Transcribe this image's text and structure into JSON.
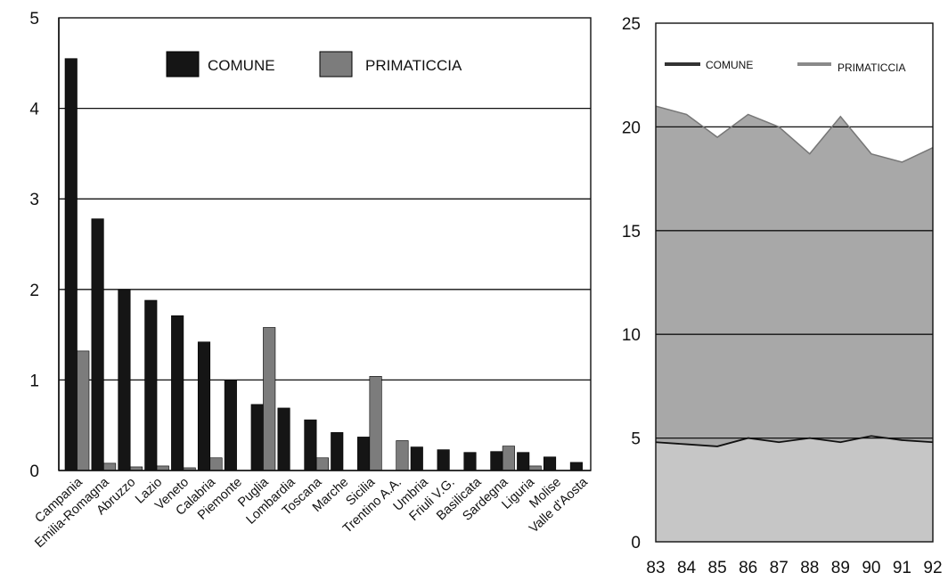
{
  "colors": {
    "comune_bar": "#151515",
    "primaticcia_bar": "#7c7c7c",
    "area_upper": "#a8a8a8",
    "area_lower": "#c6c6c6",
    "grid": "#111111",
    "frame": "#111111"
  },
  "chart_data": [
    {
      "type": "bar",
      "title": "",
      "xlabel": "",
      "ylabel": "",
      "ylim": [
        0,
        5
      ],
      "yticks": [
        "0",
        "1",
        "2",
        "3",
        "4",
        "5"
      ],
      "grid": true,
      "legend_position": "top",
      "categories": [
        "Campania",
        "Emilia-Romagna",
        "Abruzzo",
        "Lazio",
        "Veneto",
        "Calabria",
        "Piemonte",
        "Puglia",
        "Lombardia",
        "Toscana",
        "Marche",
        "Sicilia",
        "Trentino A.A.",
        "Umbria",
        "Friuli V.G.",
        "Basilicata",
        "Sardegna",
        "Liguria",
        "Molise",
        "Valle d'Aosta"
      ],
      "series": [
        {
          "name": "COMUNE",
          "values": [
            4.55,
            2.78,
            2.0,
            1.88,
            1.71,
            1.42,
            1.0,
            0.73,
            0.69,
            0.56,
            0.42,
            0.37,
            0.0,
            0.26,
            0.23,
            0.2,
            0.21,
            0.2,
            0.15,
            0.09
          ]
        },
        {
          "name": "PRIMATICCIA",
          "values": [
            1.32,
            0.08,
            0.04,
            0.05,
            0.03,
            0.14,
            0.0,
            1.58,
            0.0,
            0.14,
            0.0,
            1.04,
            0.33,
            0.0,
            0.0,
            0.0,
            0.27,
            0.05,
            0.0,
            0.0
          ]
        }
      ]
    },
    {
      "type": "area",
      "title": "",
      "xlabel": "",
      "ylabel": "",
      "ylim": [
        0,
        25
      ],
      "yticks": [
        "0",
        "5",
        "10",
        "15",
        "20",
        "25"
      ],
      "grid": true,
      "legend_position": "top",
      "x": [
        "83",
        "84",
        "85",
        "86",
        "87",
        "88",
        "89",
        "90",
        "91",
        "92"
      ],
      "series": [
        {
          "name": "COMUNE",
          "values": [
            4.8,
            4.7,
            4.6,
            5.0,
            4.8,
            5.0,
            4.8,
            5.1,
            4.9,
            4.8
          ]
        },
        {
          "name": "PRIMATICCIA",
          "values": [
            21.0,
            20.6,
            19.5,
            20.6,
            20.0,
            18.7,
            20.5,
            18.7,
            18.3,
            19.0
          ]
        }
      ]
    }
  ]
}
